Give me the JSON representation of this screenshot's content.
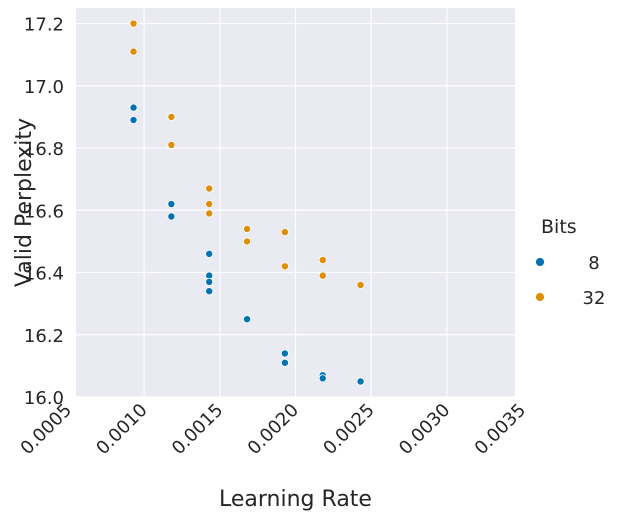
{
  "chart_data": {
    "type": "scatter",
    "title": "",
    "xlabel": "Learning Rate",
    "ylabel": "Valid Perplexity",
    "xlim": [
      0.00055,
      0.00345
    ],
    "ylim": [
      16.0,
      17.25
    ],
    "x_ticks": [
      "0.0005",
      "0.0010",
      "0.0015",
      "0.0020",
      "0.0025",
      "0.0030",
      "0.0035"
    ],
    "x_tick_values": [
      0.0005,
      0.001,
      0.0015,
      0.002,
      0.0025,
      0.003,
      0.0035
    ],
    "y_ticks": [
      "16.0",
      "16.2",
      "16.4",
      "16.6",
      "16.8",
      "17.0",
      "17.2"
    ],
    "y_tick_values": [
      16.0,
      16.2,
      16.4,
      16.6,
      16.8,
      17.0,
      17.2
    ],
    "grid": true,
    "legend": {
      "title": "Bits",
      "placement": "right"
    },
    "series": [
      {
        "name": "8",
        "color": "#0173b2",
        "points": [
          {
            "x": 0.00093,
            "y": 16.93
          },
          {
            "x": 0.00093,
            "y": 16.89
          },
          {
            "x": 0.00118,
            "y": 16.62
          },
          {
            "x": 0.00118,
            "y": 16.58
          },
          {
            "x": 0.00143,
            "y": 16.46
          },
          {
            "x": 0.00143,
            "y": 16.39
          },
          {
            "x": 0.00143,
            "y": 16.37
          },
          {
            "x": 0.00143,
            "y": 16.34
          },
          {
            "x": 0.00168,
            "y": 16.25
          },
          {
            "x": 0.00193,
            "y": 16.14
          },
          {
            "x": 0.00193,
            "y": 16.11
          },
          {
            "x": 0.00218,
            "y": 16.07
          },
          {
            "x": 0.00218,
            "y": 16.06
          },
          {
            "x": 0.00243,
            "y": 16.05
          }
        ]
      },
      {
        "name": "32",
        "color": "#de8f05",
        "points": [
          {
            "x": 0.00093,
            "y": 17.2
          },
          {
            "x": 0.00093,
            "y": 17.11
          },
          {
            "x": 0.00118,
            "y": 16.9
          },
          {
            "x": 0.00118,
            "y": 16.81
          },
          {
            "x": 0.00143,
            "y": 16.67
          },
          {
            "x": 0.00143,
            "y": 16.62
          },
          {
            "x": 0.00143,
            "y": 16.59
          },
          {
            "x": 0.00168,
            "y": 16.54
          },
          {
            "x": 0.00168,
            "y": 16.5
          },
          {
            "x": 0.00193,
            "y": 16.53
          },
          {
            "x": 0.00193,
            "y": 16.42
          },
          {
            "x": 0.00218,
            "y": 16.44
          },
          {
            "x": 0.00218,
            "y": 16.39
          },
          {
            "x": 0.00243,
            "y": 16.36
          }
        ]
      }
    ],
    "colors": {
      "plot_background": "#eaeaf2",
      "gridline": "#ffffff",
      "text": "#262626"
    }
  }
}
